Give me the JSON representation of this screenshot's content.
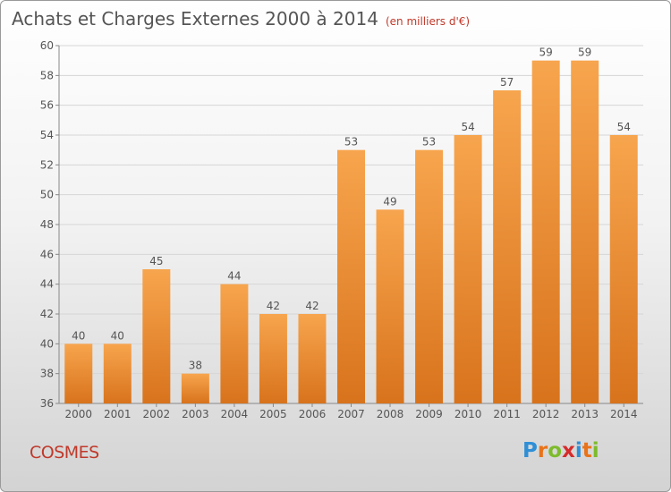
{
  "header": {
    "title": "Achats et Charges Externes 2000 à 2014",
    "subtitle": "(en milliers d'€)"
  },
  "footer": {
    "commune": "COSMES",
    "logo_text": "Proxiti"
  },
  "colors": {
    "bar_top": "#f7a54e",
    "bar_bottom": "#d8731c",
    "grid": "#d6d6d6",
    "text": "#555555",
    "accent": "#c0392b"
  },
  "chart_data": {
    "type": "bar",
    "title": "Achats et Charges Externes 2000 à 2014",
    "categories": [
      "2000",
      "2001",
      "2002",
      "2003",
      "2004",
      "2005",
      "2006",
      "2007",
      "2008",
      "2009",
      "2010",
      "2011",
      "2012",
      "2013",
      "2014"
    ],
    "values": [
      40,
      40,
      45,
      38,
      44,
      42,
      42,
      53,
      49,
      53,
      54,
      57,
      59,
      59,
      54
    ],
    "ylim": [
      36,
      60
    ],
    "yticks": [
      36,
      38,
      40,
      42,
      44,
      46,
      48,
      50,
      52,
      54,
      56,
      58,
      60
    ],
    "grid": true,
    "data_labels": true
  }
}
